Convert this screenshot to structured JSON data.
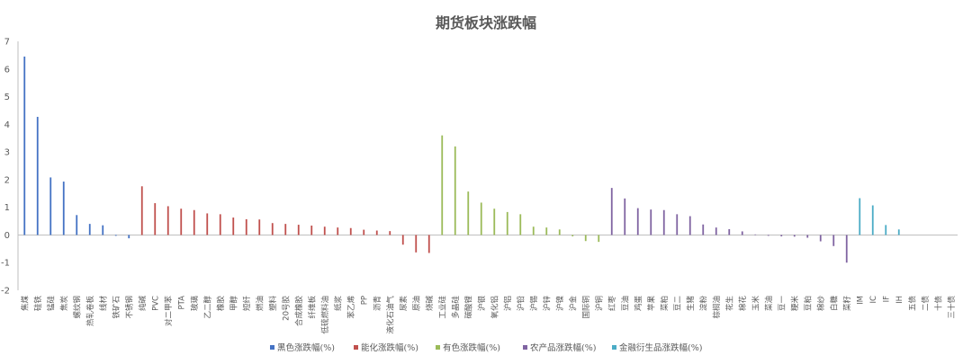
{
  "chart_data": {
    "type": "bar",
    "title": "期货板块涨跌幅",
    "ylim": [
      -2,
      7
    ],
    "yticks": [
      -2,
      -1,
      0,
      1,
      2,
      3,
      4,
      5,
      6,
      7
    ],
    "legend_position": "bottom",
    "colors": {
      "black": "#4472C4",
      "energy": "#C0504D",
      "nonferrous": "#9BBB59",
      "agri": "#8064A2",
      "fin": "#4BACC6",
      "axis": "#BFBFBF",
      "text": "#595959"
    },
    "series": [
      {
        "name": "黑色涨跌幅(%)",
        "color_key": "black",
        "categories": [
          "焦煤",
          "硅铁",
          "锰硅",
          "焦炭",
          "螺纹钢",
          "热轧卷板",
          "线材",
          "铁矿石",
          "不锈钢"
        ],
        "values": [
          6.45,
          4.27,
          2.08,
          1.93,
          0.72,
          0.4,
          0.35,
          -0.03,
          -0.12
        ]
      },
      {
        "name": "能化涨跌幅(%)",
        "color_key": "energy",
        "categories": [
          "纯碱",
          "PVC",
          "对二甲苯",
          "PTA",
          "玻璃",
          "乙二醇",
          "橡胶",
          "甲醇",
          "短纤",
          "燃油",
          "塑料",
          "20号胶",
          "合成橡胶",
          "纤维板",
          "低硫燃料油",
          "纸浆",
          "苯乙烯",
          "PP",
          "沥青",
          "液化石油气",
          "尿素",
          "原油",
          "烧碱"
        ],
        "values": [
          1.76,
          1.15,
          1.04,
          0.95,
          0.9,
          0.78,
          0.75,
          0.63,
          0.57,
          0.56,
          0.43,
          0.4,
          0.37,
          0.34,
          0.3,
          0.27,
          0.25,
          0.19,
          0.16,
          0.14,
          -0.35,
          -0.63,
          -0.65
        ]
      },
      {
        "name": "有色涨跌幅(%)",
        "color_key": "nonferrous",
        "categories": [
          "工业硅",
          "多晶硅",
          "碳酸锂",
          "沪银",
          "氧化铝",
          "沪铝",
          "沪铅",
          "沪锡",
          "沪锌",
          "沪镍",
          "沪金",
          "国际铜",
          "沪铜"
        ],
        "values": [
          3.6,
          3.2,
          1.57,
          1.17,
          0.95,
          0.83,
          0.75,
          0.3,
          0.27,
          0.2,
          -0.05,
          -0.22,
          -0.25
        ]
      },
      {
        "name": "农产品涨跌幅(%)",
        "color_key": "agri",
        "categories": [
          "红枣",
          "豆油",
          "鸡蛋",
          "苹果",
          "菜粕",
          "豆二",
          "生猪",
          "淀粉",
          "棕榈油",
          "花生",
          "棉花",
          "玉米",
          "菜油",
          "豆一",
          "粳米",
          "豆粕",
          "棉纱",
          "白糖",
          "菜籽"
        ],
        "values": [
          1.7,
          1.32,
          0.97,
          0.92,
          0.9,
          0.75,
          0.68,
          0.38,
          0.27,
          0.21,
          0.13,
          0.02,
          -0.03,
          -0.05,
          -0.06,
          -0.1,
          -0.23,
          -0.4,
          -1.0
        ]
      },
      {
        "name": "金融衍生品涨跌幅(%)",
        "color_key": "fin",
        "categories": [
          "IM",
          "IC",
          "IF",
          "IH",
          "五债",
          "二债",
          "十债",
          "三十债"
        ],
        "values": [
          1.33,
          1.07,
          0.36,
          0.2,
          0.0,
          0.0,
          0.0,
          0.0
        ]
      }
    ]
  }
}
